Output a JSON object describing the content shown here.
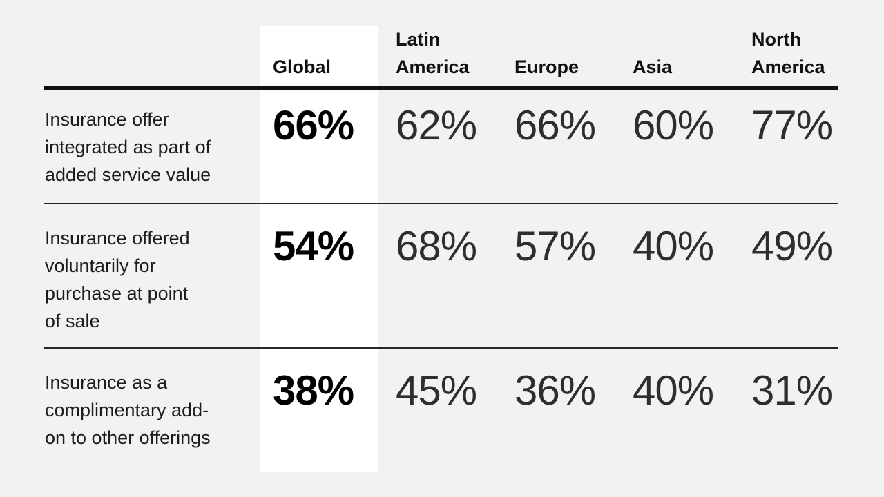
{
  "colors": {
    "page_background": "#f2f2f2",
    "highlight_column_background": "#ffffff",
    "text": "#111111",
    "heavy_rule": "#111111",
    "light_rule": "#262626"
  },
  "table": {
    "columns": [
      {
        "id": "global",
        "label_lines": {
          "0": "Global"
        },
        "highlighted": true
      },
      {
        "id": "latin-america",
        "label_lines": {
          "0": "Latin",
          "1": "America"
        },
        "highlighted": false
      },
      {
        "id": "europe",
        "label_lines": {
          "0": "Europe"
        },
        "highlighted": false
      },
      {
        "id": "asia",
        "label_lines": {
          "0": "Asia"
        },
        "highlighted": false
      },
      {
        "id": "north-america",
        "label_lines": {
          "0": "North",
          "1": "America"
        },
        "highlighted": false
      }
    ],
    "rows": [
      {
        "label": "Insurance offer integrated as part of added service value",
        "label_lines": {
          "0": "Insurance offer",
          "1": "integrated as part of",
          "2": "added service value"
        },
        "values": {
          "0": "66%",
          "1": "62%",
          "2": "66%",
          "3": "60%",
          "4": "77%"
        }
      },
      {
        "label": "Insurance offered voluntarily for purchase at point of sale",
        "label_lines": {
          "0": "Insurance offered",
          "1": "voluntarily for",
          "2": "purchase at point",
          "3": "of sale"
        },
        "values": {
          "0": "54%",
          "1": "68%",
          "2": "57%",
          "3": "40%",
          "4": "49%"
        }
      },
      {
        "label": "Insurance as a complimentary add-on to other offerings",
        "label_lines": {
          "0": "Insurance as a",
          "1": "complimentary add-",
          "2": "on to other offerings"
        },
        "values": {
          "0": "38%",
          "1": "45%",
          "2": "36%",
          "3": "40%",
          "4": "31%"
        }
      }
    ]
  },
  "chart_data": {
    "type": "table",
    "categories": [
      "Global",
      "Latin America",
      "Europe",
      "Asia",
      "North America"
    ],
    "series": [
      {
        "name": "Insurance offer integrated as part of added service value",
        "values": [
          66,
          62,
          66,
          60,
          77
        ]
      },
      {
        "name": "Insurance offered voluntarily for purchase at point of sale",
        "values": [
          54,
          68,
          57,
          40,
          49
        ]
      },
      {
        "name": "Insurance as a complimentary add-on to other offerings",
        "values": [
          38,
          45,
          36,
          40,
          31
        ]
      }
    ],
    "unit": "%",
    "highlight_column": "Global",
    "legend_position": "none",
    "grid": "horizontal-rules-only"
  }
}
